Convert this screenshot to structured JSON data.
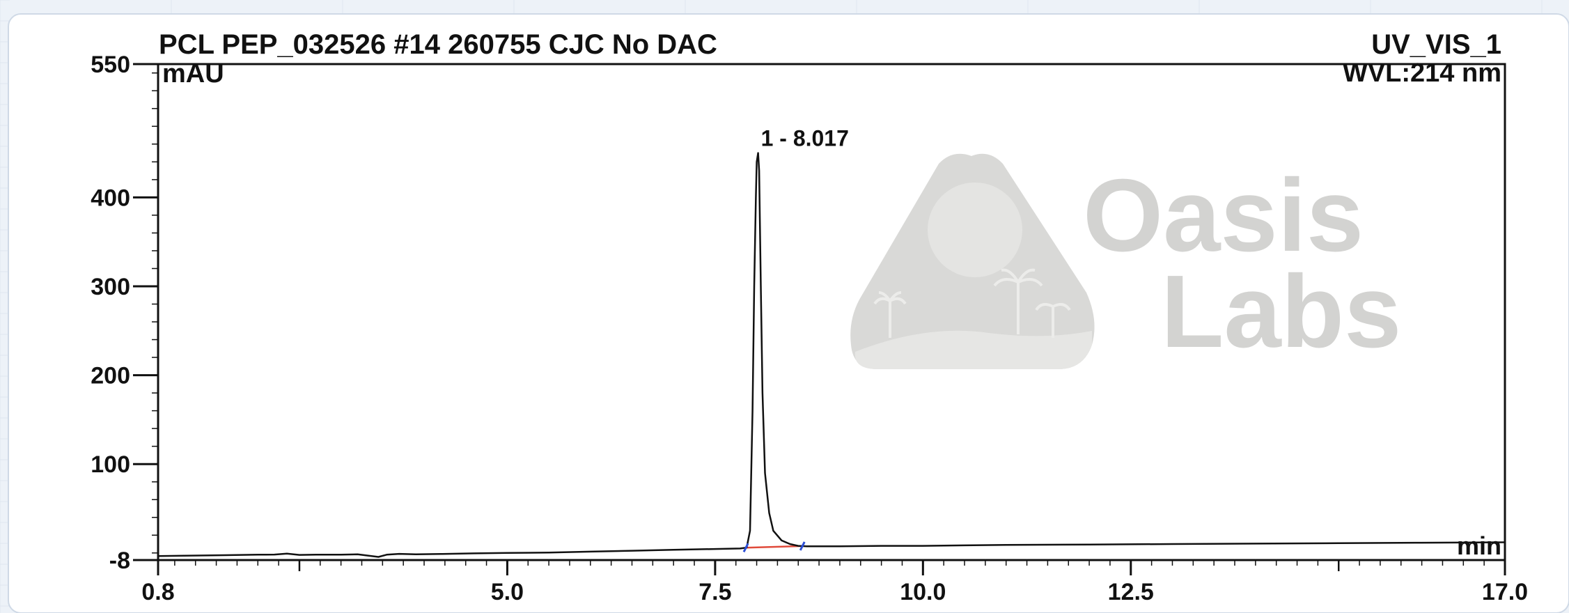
{
  "chart_data": {
    "type": "line",
    "title": "PCL PEP_032526 #14   260755 CJC No DAC",
    "channel": "UV_VIS_1",
    "wavelength_label": "WVL:214 nm",
    "ylabel": "mAU",
    "xlabel": "min",
    "xlim": [
      0.8,
      17.0
    ],
    "ylim": [
      -8,
      550
    ],
    "x_ticks": [
      "0.8",
      "5.0",
      "7.5",
      "10.0",
      "12.5",
      "17.0"
    ],
    "y_ticks": [
      "-8",
      "100",
      "200",
      "300",
      "400",
      "550"
    ],
    "grid": false,
    "peaks": [
      {
        "label": "1 - 8.017",
        "number": 1,
        "retention_time": 8.017,
        "height_mAU": 450,
        "start": 7.87,
        "end": 8.55
      }
    ],
    "series": [
      {
        "points": [
          [
            0.8,
            -3.5
          ],
          [
            1.2,
            -3
          ],
          [
            1.6,
            -2.5
          ],
          [
            2.0,
            -2
          ],
          [
            2.2,
            -1.8
          ],
          [
            2.35,
            -0.8
          ],
          [
            2.5,
            -2.2
          ],
          [
            2.7,
            -2
          ],
          [
            3.0,
            -2
          ],
          [
            3.2,
            -1.5
          ],
          [
            3.45,
            -4.5
          ],
          [
            3.55,
            -2
          ],
          [
            3.7,
            -1
          ],
          [
            3.9,
            -1.5
          ],
          [
            4.2,
            -1.2
          ],
          [
            4.6,
            -0.5
          ],
          [
            5.0,
            0
          ],
          [
            5.5,
            0.5
          ],
          [
            6.0,
            1.5
          ],
          [
            6.5,
            2.5
          ],
          [
            7.0,
            3.5
          ],
          [
            7.5,
            4.5
          ],
          [
            7.8,
            5
          ],
          [
            7.88,
            6
          ],
          [
            7.92,
            25
          ],
          [
            7.95,
            160
          ],
          [
            7.97,
            300
          ],
          [
            7.99,
            400
          ],
          [
            8.0,
            440
          ],
          [
            8.017,
            450
          ],
          [
            8.03,
            430
          ],
          [
            8.05,
            300
          ],
          [
            8.07,
            180
          ],
          [
            8.1,
            90
          ],
          [
            8.15,
            45
          ],
          [
            8.2,
            25
          ],
          [
            8.3,
            14
          ],
          [
            8.4,
            10
          ],
          [
            8.5,
            8
          ],
          [
            8.6,
            7.5
          ],
          [
            9.0,
            7.5
          ],
          [
            9.5,
            8
          ],
          [
            10.0,
            8
          ],
          [
            10.5,
            8.5
          ],
          [
            11.0,
            9
          ],
          [
            12.0,
            9.5
          ],
          [
            13.0,
            10
          ],
          [
            14.0,
            10.5
          ],
          [
            15.0,
            11
          ],
          [
            16.0,
            11.5
          ],
          [
            17.0,
            12
          ]
        ]
      }
    ]
  },
  "watermark": {
    "line1": "Oasis",
    "line2": "Labs",
    "color": "#d3d3d1"
  },
  "colors": {
    "trace": "#111111",
    "baseline_segment": "#e04a3a",
    "peak_marker": "#2d4fd6",
    "frame": "#111111",
    "panel": "#ffffff",
    "background": "#edf2f8"
  }
}
